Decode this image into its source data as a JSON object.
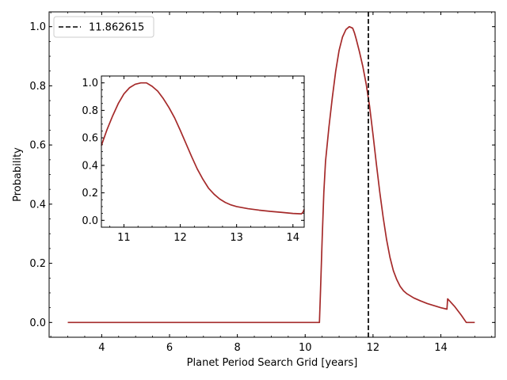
{
  "chart_data": [
    {
      "id": "main",
      "type": "line",
      "xlabel": "Planet Period Search Grid [years]",
      "ylabel": "Probability",
      "xlim": [
        2.45,
        15.6
      ],
      "ylim": [
        -0.05,
        1.05
      ],
      "xticks": [
        4,
        6,
        8,
        10,
        12,
        14
      ],
      "yticks": [
        0.0,
        0.2,
        0.4,
        0.6,
        0.8,
        1.0
      ],
      "xtick_labels": [
        "4",
        "6",
        "8",
        "10",
        "12",
        "14"
      ],
      "ytick_labels": [
        "0.0",
        "0.2",
        "0.4",
        "0.6",
        "0.8",
        "1.0"
      ],
      "grid": false,
      "legend": {
        "placement": "top-left",
        "entries": [
          {
            "label": "11.862615",
            "style": "dashed",
            "color": "#000000"
          }
        ]
      },
      "vline": {
        "x": 11.862615,
        "color": "#000000",
        "style": "dashed"
      },
      "series": [
        {
          "color": "#a52a2a",
          "x": [
            3.0,
            4.0,
            5.0,
            6.0,
            7.0,
            8.0,
            9.0,
            10.0,
            10.42,
            10.45,
            10.5,
            10.55,
            10.6,
            10.7,
            10.8,
            10.9,
            11.0,
            11.1,
            11.2,
            11.3,
            11.4,
            11.45,
            11.5,
            11.6,
            11.7,
            11.8,
            11.9,
            12.0,
            12.1,
            12.2,
            12.3,
            12.4,
            12.5,
            12.6,
            12.7,
            12.8,
            12.9,
            13.0,
            13.2,
            13.4,
            13.6,
            13.8,
            14.0,
            14.18,
            14.2,
            14.4,
            14.6,
            14.75,
            14.8,
            15.0
          ],
          "y": [
            0.0,
            0.0,
            0.0,
            0.0,
            0.0,
            0.0,
            0.0,
            0.0,
            0.0,
            0.1,
            0.28,
            0.44,
            0.545,
            0.66,
            0.76,
            0.85,
            0.92,
            0.965,
            0.99,
            1.0,
            0.995,
            0.98,
            0.96,
            0.915,
            0.865,
            0.805,
            0.73,
            0.635,
            0.535,
            0.44,
            0.355,
            0.28,
            0.22,
            0.175,
            0.145,
            0.122,
            0.107,
            0.097,
            0.083,
            0.073,
            0.064,
            0.057,
            0.05,
            0.045,
            0.08,
            0.055,
            0.025,
            0.0,
            0.0,
            0.0
          ]
        }
      ]
    },
    {
      "id": "inset",
      "type": "line",
      "xlabel": "",
      "ylabel": "",
      "xlim": [
        10.6,
        14.2
      ],
      "ylim": [
        -0.05,
        1.05
      ],
      "xticks": [
        11,
        12,
        13,
        14
      ],
      "yticks": [
        0.0,
        0.2,
        0.4,
        0.6,
        0.8,
        1.0
      ],
      "xtick_labels": [
        "11",
        "12",
        "13",
        "14"
      ],
      "ytick_labels": [
        "0.0",
        "0.2",
        "0.4",
        "0.6",
        "0.8",
        "1.0"
      ],
      "grid": false,
      "series": [
        {
          "color": "#a52a2a",
          "x": [
            10.6,
            10.7,
            10.8,
            10.9,
            11.0,
            11.1,
            11.2,
            11.3,
            11.4,
            11.5,
            11.6,
            11.7,
            11.8,
            11.9,
            12.0,
            12.1,
            12.2,
            12.3,
            12.4,
            12.5,
            12.6,
            12.7,
            12.8,
            12.9,
            13.0,
            13.2,
            13.4,
            13.6,
            13.8,
            14.0,
            14.15,
            14.18,
            14.2
          ],
          "y": [
            0.545,
            0.66,
            0.76,
            0.85,
            0.92,
            0.965,
            0.99,
            1.0,
            1.0,
            0.975,
            0.94,
            0.885,
            0.82,
            0.745,
            0.655,
            0.56,
            0.465,
            0.375,
            0.3,
            0.235,
            0.19,
            0.155,
            0.13,
            0.112,
            0.1,
            0.085,
            0.074,
            0.065,
            0.058,
            0.05,
            0.047,
            0.06,
            0.08
          ]
        }
      ]
    }
  ]
}
